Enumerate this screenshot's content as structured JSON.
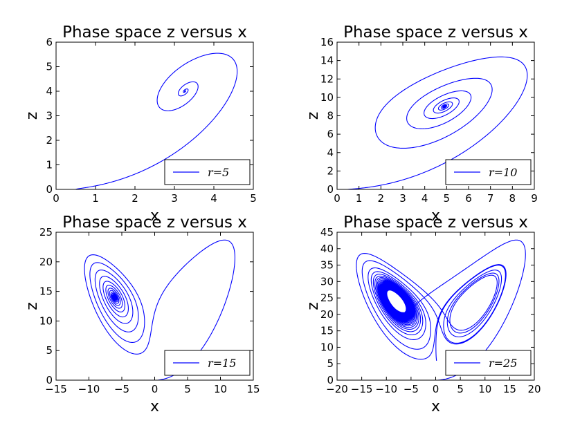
{
  "chart_data": [
    {
      "type": "line",
      "title": "Phase space z versus x",
      "xlabel": "x",
      "ylabel": "z",
      "xlim": [
        0,
        5
      ],
      "ylim": [
        0,
        6
      ],
      "xticks": [
        "0",
        "1",
        "2",
        "3",
        "4",
        "5"
      ],
      "yticks": [
        "0",
        "1",
        "2",
        "3",
        "4",
        "5",
        "6"
      ],
      "legend": "r=5",
      "legend_position": "lower-right",
      "color": "#0000ff",
      "r": 5,
      "x": [
        0.45,
        0.9,
        1.4,
        1.9,
        2.4,
        2.9,
        3.3,
        3.7,
        4.0,
        4.3,
        4.5,
        4.55,
        4.4,
        4.1,
        3.6,
        3.1,
        2.8,
        2.9,
        3.2,
        3.5,
        3.4,
        3.2,
        3.15,
        3.25,
        3.3,
        3.22,
        3.25
      ],
      "y": [
        0.02,
        0.1,
        0.3,
        0.6,
        1.0,
        1.5,
        2.0,
        2.5,
        3.0,
        3.6,
        4.2,
        4.9,
        5.45,
        5.5,
        5.2,
        4.6,
        4.0,
        3.45,
        3.4,
        3.8,
        4.3,
        4.2,
        3.9,
        3.8,
        4.05,
        4.0,
        3.95
      ]
    },
    {
      "type": "line",
      "title": "Phase space z versus x",
      "xlabel": "x",
      "ylabel": "z",
      "xlim": [
        0,
        9
      ],
      "ylim": [
        0,
        16
      ],
      "xticks": [
        "0",
        "1",
        "2",
        "3",
        "4",
        "5",
        "6",
        "7",
        "8",
        "9"
      ],
      "yticks": [
        "0",
        "2",
        "4",
        "6",
        "8",
        "10",
        "12",
        "14",
        "16"
      ],
      "legend": "r=10",
      "legend_position": "lower-right",
      "color": "#0000ff",
      "r": 10
    },
    {
      "type": "line",
      "title": "Phase space z versus x",
      "xlabel": "x",
      "ylabel": "z",
      "xlim": [
        -15,
        15
      ],
      "ylim": [
        0,
        25
      ],
      "xticks": [
        "−15",
        "−10",
        "−5",
        "0",
        "5",
        "10",
        "15"
      ],
      "yticks": [
        "0",
        "5",
        "10",
        "15",
        "20",
        "25"
      ],
      "legend": "r=15",
      "legend_position": "lower-right",
      "color": "#0000ff",
      "r": 15
    },
    {
      "type": "line",
      "title": "Phase space z versus x",
      "xlabel": "x",
      "ylabel": "z",
      "xlim": [
        -20,
        20
      ],
      "ylim": [
        0,
        45
      ],
      "xticks": [
        "−20",
        "−15",
        "−10",
        "−5",
        "0",
        "5",
        "10",
        "15",
        "20"
      ],
      "yticks": [
        "0",
        "5",
        "10",
        "15",
        "20",
        "25",
        "30",
        "35",
        "40",
        "45"
      ],
      "legend": "r=25",
      "legend_position": "lower-right",
      "color": "#0000ff",
      "r": 25
    }
  ]
}
